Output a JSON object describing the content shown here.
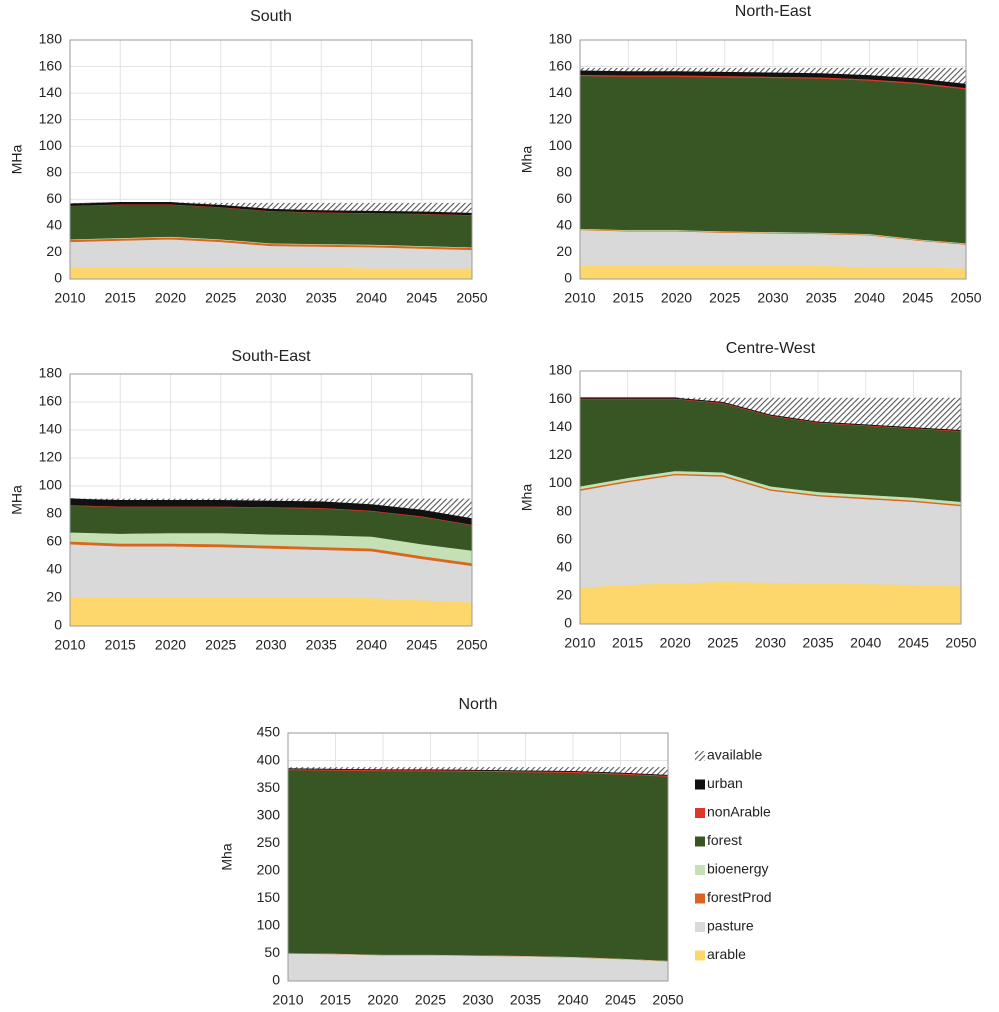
{
  "chart_data": [
    {
      "type": "area",
      "title": "South",
      "y_label": "MHa",
      "x": [
        2010,
        2015,
        2020,
        2025,
        2030,
        2035,
        2040,
        2045,
        2050
      ],
      "xlim": [
        2010,
        2050
      ],
      "xticks": [
        2010,
        2015,
        2020,
        2025,
        2030,
        2035,
        2040,
        2045,
        2050
      ],
      "ylim": [
        0,
        180
      ],
      "yticks": [
        0,
        20,
        40,
        60,
        80,
        100,
        120,
        140,
        160,
        180
      ],
      "grid": true,
      "series": [
        {
          "name": "arable",
          "color": "#fdd76b",
          "values": [
            9,
            9,
            9,
            9,
            9,
            9,
            8,
            8,
            8
          ]
        },
        {
          "name": "pasture",
          "color": "#d9d9d9",
          "values": [
            19,
            20,
            21,
            19,
            16,
            15.5,
            16,
            15,
            14
          ]
        },
        {
          "name": "forestProd",
          "color": "#d9661c",
          "values": [
            1.5,
            1.5,
            1.5,
            1.5,
            1.5,
            1.5,
            1.5,
            1.5,
            1.5
          ]
        },
        {
          "name": "bioenergy",
          "color": "#c5e0b4",
          "values": [
            0.5,
            0.5,
            0.5,
            0.5,
            0.5,
            0.5,
            0.5,
            0.5,
            0.5
          ]
        },
        {
          "name": "forest",
          "color": "#375623",
          "values": [
            25,
            25,
            24,
            24,
            24,
            23.5,
            23.5,
            24,
            24
          ]
        },
        {
          "name": "nonArable",
          "color": "#e0352a",
          "values": [
            0.3,
            0.3,
            0.3,
            0.3,
            0.3,
            0.3,
            0.3,
            0.3,
            0.3
          ]
        },
        {
          "name": "urban",
          "color": "#111111",
          "values": [
            1.5,
            1.5,
            1.5,
            1.5,
            1.5,
            1.5,
            1.5,
            1.5,
            1.5
          ]
        },
        {
          "name": "available",
          "color": "#8c8c8c",
          "pattern": "hatch",
          "values": [
            0.2,
            0,
            0,
            1.5,
            4.5,
            5.5,
            6,
            6.5,
            7.5
          ]
        }
      ]
    },
    {
      "type": "area",
      "title": "North-East",
      "y_label": "Mha",
      "x": [
        2010,
        2015,
        2020,
        2025,
        2030,
        2035,
        2040,
        2045,
        2050
      ],
      "xlim": [
        2010,
        2050
      ],
      "xticks": [
        2010,
        2015,
        2020,
        2025,
        2030,
        2035,
        2040,
        2045,
        2050
      ],
      "ylim": [
        0,
        180
      ],
      "yticks": [
        0,
        20,
        40,
        60,
        80,
        100,
        120,
        140,
        160,
        180
      ],
      "grid": true,
      "series": [
        {
          "name": "arable",
          "color": "#fdd76b",
          "values": [
            10,
            10,
            10,
            10,
            10,
            10,
            9,
            9,
            8
          ]
        },
        {
          "name": "pasture",
          "color": "#d9d9d9",
          "values": [
            27,
            26,
            26,
            25,
            24.5,
            24,
            24,
            20,
            18
          ]
        },
        {
          "name": "forestProd",
          "color": "#d9661c",
          "values": [
            0.5,
            0.5,
            0.5,
            0.5,
            0.5,
            0.5,
            0.5,
            0.5,
            0.5
          ]
        },
        {
          "name": "bioenergy",
          "color": "#c5e0b4",
          "values": [
            0.5,
            0.5,
            0.5,
            0.5,
            0.5,
            0.5,
            0.5,
            0.5,
            0.5
          ]
        },
        {
          "name": "forest",
          "color": "#375623",
          "values": [
            115,
            115.5,
            115.5,
            116,
            116,
            116,
            115.5,
            117,
            116
          ]
        },
        {
          "name": "nonArable",
          "color": "#e0352a",
          "values": [
            1,
            1,
            1,
            1,
            1,
            1,
            1,
            1,
            1
          ]
        },
        {
          "name": "urban",
          "color": "#111111",
          "values": [
            3,
            3,
            3,
            3,
            3,
            3,
            3,
            3,
            3
          ]
        },
        {
          "name": "available",
          "color": "#8c8c8c",
          "pattern": "hatch",
          "values": [
            2,
            2.5,
            2.5,
            3,
            3.5,
            4,
            5.5,
            8,
            12
          ]
        }
      ]
    },
    {
      "type": "area",
      "title": "South-East",
      "y_label": "MHa",
      "x": [
        2010,
        2015,
        2020,
        2025,
        2030,
        2035,
        2040,
        2045,
        2050
      ],
      "xlim": [
        2010,
        2050
      ],
      "xticks": [
        2010,
        2015,
        2020,
        2025,
        2030,
        2035,
        2040,
        2045,
        2050
      ],
      "ylim": [
        0,
        180
      ],
      "yticks": [
        0,
        20,
        40,
        60,
        80,
        100,
        120,
        140,
        160,
        180
      ],
      "grid": true,
      "series": [
        {
          "name": "arable",
          "color": "#fdd76b",
          "values": [
            21,
            20.5,
            20.5,
            20.5,
            20.5,
            20.5,
            20,
            18.5,
            17
          ]
        },
        {
          "name": "pasture",
          "color": "#d9d9d9",
          "values": [
            37.5,
            36.5,
            36.5,
            36,
            35,
            34,
            33.5,
            29.5,
            26
          ]
        },
        {
          "name": "forestProd",
          "color": "#d9661c",
          "values": [
            2,
            2,
            2,
            2,
            2,
            2,
            2,
            2,
            2
          ]
        },
        {
          "name": "bioenergy",
          "color": "#c5e0b4",
          "values": [
            6.5,
            7,
            7.5,
            8,
            8,
            8.5,
            8.5,
            8.5,
            9
          ]
        },
        {
          "name": "forest",
          "color": "#375623",
          "values": [
            19,
            19,
            18.5,
            18.5,
            19,
            19,
            18,
            19.5,
            18
          ]
        },
        {
          "name": "nonArable",
          "color": "#e0352a",
          "values": [
            0.5,
            0.5,
            0.5,
            0.5,
            0.5,
            0.5,
            0.5,
            0.5,
            0.5
          ]
        },
        {
          "name": "urban",
          "color": "#111111",
          "values": [
            4.5,
            4.5,
            4.5,
            4.5,
            4.5,
            4.5,
            4.5,
            4.5,
            4.5
          ]
        },
        {
          "name": "available",
          "color": "#8c8c8c",
          "pattern": "hatch",
          "values": [
            0,
            1,
            1,
            1,
            1.5,
            2,
            4,
            8,
            14
          ]
        }
      ]
    },
    {
      "type": "area",
      "title": "Centre-West",
      "y_label": "Mha",
      "x": [
        2010,
        2015,
        2020,
        2025,
        2030,
        2035,
        2040,
        2045,
        2050
      ],
      "xlim": [
        2010,
        2050
      ],
      "xticks": [
        2010,
        2015,
        2020,
        2025,
        2030,
        2035,
        2040,
        2045,
        2050
      ],
      "ylim": [
        0,
        180
      ],
      "yticks": [
        0,
        20,
        40,
        60,
        80,
        100,
        120,
        140,
        160,
        180
      ],
      "grid": true,
      "series": [
        {
          "name": "arable",
          "color": "#fdd76b",
          "values": [
            26,
            28,
            29,
            30,
            29.5,
            29,
            28.5,
            28,
            27
          ]
        },
        {
          "name": "pasture",
          "color": "#d9d9d9",
          "values": [
            69,
            73,
            77,
            75,
            65.5,
            62,
            60.5,
            59,
            57
          ]
        },
        {
          "name": "forestProd",
          "color": "#d9661c",
          "values": [
            1,
            1,
            1,
            1,
            1,
            1,
            1,
            1,
            1
          ]
        },
        {
          "name": "bioenergy",
          "color": "#c5e0b4",
          "values": [
            2,
            2,
            2,
            2,
            2,
            2,
            2,
            2,
            2
          ]
        },
        {
          "name": "forest",
          "color": "#375623",
          "values": [
            62,
            56,
            51,
            49,
            50,
            49,
            49,
            49,
            50
          ]
        },
        {
          "name": "nonArable",
          "color": "#e0352a",
          "values": [
            0.5,
            0.5,
            0.5,
            0.5,
            0.5,
            0.5,
            0.5,
            0.5,
            0.5
          ]
        },
        {
          "name": "urban",
          "color": "#111111",
          "values": [
            0.5,
            0.5,
            0.5,
            0.5,
            0.5,
            0.5,
            0.5,
            0.5,
            0.5
          ]
        },
        {
          "name": "available",
          "color": "#8c8c8c",
          "pattern": "hatch",
          "values": [
            0,
            0,
            0,
            3,
            12,
            17,
            19,
            21,
            23
          ]
        }
      ]
    },
    {
      "type": "area",
      "title": "North",
      "y_label": "Mha",
      "legend": "right",
      "x": [
        2010,
        2015,
        2020,
        2025,
        2030,
        2035,
        2040,
        2045,
        2050
      ],
      "xlim": [
        2010,
        2050
      ],
      "xticks": [
        2010,
        2015,
        2020,
        2025,
        2030,
        2035,
        2040,
        2045,
        2050
      ],
      "ylim": [
        0,
        450
      ],
      "yticks": [
        0,
        50,
        100,
        150,
        200,
        250,
        300,
        350,
        400,
        450
      ],
      "grid": true,
      "series": [
        {
          "name": "arable",
          "color": "#fdd76b",
          "values": [
            1,
            1,
            1,
            1,
            1,
            1,
            1,
            1,
            1
          ]
        },
        {
          "name": "pasture",
          "color": "#d9d9d9",
          "values": [
            49,
            48,
            46,
            46,
            45,
            44,
            42,
            39,
            35
          ]
        },
        {
          "name": "forestProd",
          "color": "#d9661c",
          "values": [
            0.5,
            0.5,
            0.5,
            0.5,
            0.5,
            0.5,
            0.5,
            0.5,
            0.5
          ]
        },
        {
          "name": "bioenergy",
          "color": "#c5e0b4",
          "values": [
            0.5,
            0.5,
            0.5,
            0.5,
            0.5,
            0.5,
            0.5,
            0.5,
            0.5
          ]
        },
        {
          "name": "forest",
          "color": "#375623",
          "values": [
            332,
            332,
            333,
            333,
            333,
            333,
            334,
            334,
            334
          ]
        },
        {
          "name": "nonArable",
          "color": "#e0352a",
          "values": [
            2,
            2,
            2,
            2,
            2,
            2,
            2,
            2,
            2
          ]
        },
        {
          "name": "urban",
          "color": "#111111",
          "values": [
            1,
            1,
            1,
            1,
            1,
            1,
            1,
            1,
            1
          ]
        },
        {
          "name": "available",
          "color": "#8c8c8c",
          "pattern": "hatch",
          "values": [
            2,
            3,
            4,
            4,
            5,
            6,
            7,
            10,
            14
          ]
        }
      ]
    }
  ]
}
